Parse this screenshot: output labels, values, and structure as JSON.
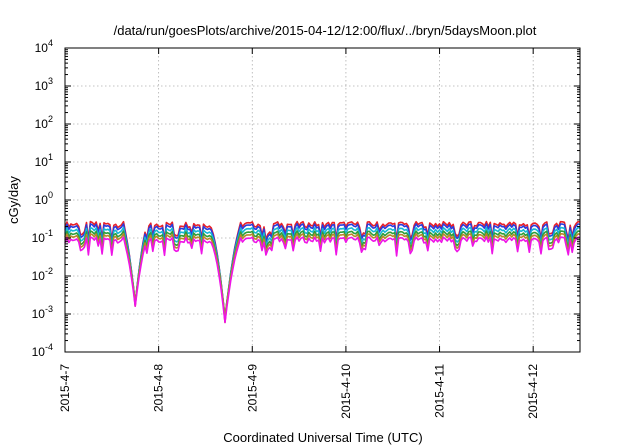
{
  "chart_data": {
    "type": "line",
    "title": "/data/run/goesPlots/archive/2015-04-12/12:00/flux/../bryn/5daysMoon.plot",
    "xlabel": "Coordinated Universal Time (UTC)",
    "ylabel": "cGy/day",
    "yscale": "log",
    "ylim": [
      0.0001,
      10000
    ],
    "xlim": [
      "2015-04-07 00:00",
      "2015-04-12 12:00"
    ],
    "x_ticks": [
      "2015-4-7",
      "2015-4-8",
      "2015-4-9",
      "2015-4-10",
      "2015-4-11",
      "2015-4-12"
    ],
    "y_ticks": [
      {
        "base": "10",
        "exp": "-4"
      },
      {
        "base": "10",
        "exp": "-3"
      },
      {
        "base": "10",
        "exp": "-2"
      },
      {
        "base": "10",
        "exp": "-1"
      },
      {
        "base": "10",
        "exp": "0"
      },
      {
        "base": "10",
        "exp": "1"
      },
      {
        "base": "10",
        "exp": "2"
      },
      {
        "base": "10",
        "exp": "3"
      },
      {
        "base": "10",
        "exp": "4"
      }
    ],
    "grid": true,
    "series": [
      {
        "color": "#e8212a",
        "scale": 2.3,
        "points": [
          [
            "2015-04-07 00:00",
            0.22
          ],
          [
            "2015-04-07 12:00",
            0.21
          ],
          [
            "2015-04-07 18:00",
            0.0016
          ],
          [
            "2015-04-08 00:00",
            0.22
          ],
          [
            "2015-04-08 12:00",
            0.22
          ],
          [
            "2015-04-08 17:00",
            0.0006
          ],
          [
            "2015-04-09 00:00",
            0.22
          ],
          [
            "2015-04-10 00:00",
            0.22
          ],
          [
            "2015-04-11 00:00",
            0.22
          ],
          [
            "2015-04-12 00:00",
            0.22
          ],
          [
            "2015-04-12 12:00",
            0.22
          ]
        ]
      },
      {
        "color": "#2a3bdc",
        "scale": 2.0,
        "points": [
          [
            "2015-04-07 00:00",
            0.2
          ],
          [
            "2015-04-07 12:00",
            0.19
          ],
          [
            "2015-04-07 18:00",
            0.0018
          ],
          [
            "2015-04-08 00:00",
            0.2
          ],
          [
            "2015-04-08 12:00",
            0.2
          ],
          [
            "2015-04-08 17:00",
            0.0007
          ],
          [
            "2015-04-09 00:00",
            0.2
          ],
          [
            "2015-04-10 00:00",
            0.2
          ],
          [
            "2015-04-11 00:00",
            0.2
          ],
          [
            "2015-04-12 00:00",
            0.2
          ],
          [
            "2015-04-12 12:00",
            0.2
          ]
        ]
      },
      {
        "color": "#17b8d4",
        "scale": 1.6,
        "points": [
          [
            "2015-04-07 00:00",
            0.16
          ],
          [
            "2015-04-07 12:00",
            0.15
          ],
          [
            "2015-04-07 18:00",
            0.002
          ],
          [
            "2015-04-08 00:00",
            0.16
          ],
          [
            "2015-04-08 12:00",
            0.16
          ],
          [
            "2015-04-08 17:00",
            0.0008
          ],
          [
            "2015-04-09 00:00",
            0.16
          ],
          [
            "2015-04-10 00:00",
            0.16
          ],
          [
            "2015-04-11 00:00",
            0.16
          ],
          [
            "2015-04-12 00:00",
            0.16
          ],
          [
            "2015-04-12 12:00",
            0.16
          ]
        ]
      },
      {
        "color": "#2e9e3a",
        "scale": 1.3,
        "points": [
          [
            "2015-04-07 00:00",
            0.13
          ],
          [
            "2015-04-07 12:00",
            0.12
          ],
          [
            "2015-04-07 18:00",
            0.002
          ],
          [
            "2015-04-08 00:00",
            0.13
          ],
          [
            "2015-04-08 12:00",
            0.13
          ],
          [
            "2015-04-08 17:00",
            0.0008
          ],
          [
            "2015-04-09 00:00",
            0.13
          ],
          [
            "2015-04-10 00:00",
            0.13
          ],
          [
            "2015-04-11 00:00",
            0.13
          ],
          [
            "2015-04-12 00:00",
            0.13
          ],
          [
            "2015-04-12 12:00",
            0.13
          ]
        ]
      },
      {
        "color": "#b8862a",
        "scale": 1.1,
        "points": [
          [
            "2015-04-07 00:00",
            0.11
          ],
          [
            "2015-04-07 12:00",
            0.1
          ],
          [
            "2015-04-07 18:00",
            0.002
          ],
          [
            "2015-04-08 00:00",
            0.11
          ],
          [
            "2015-04-08 12:00",
            0.11
          ],
          [
            "2015-04-08 17:00",
            0.0008
          ],
          [
            "2015-04-09 00:00",
            0.11
          ],
          [
            "2015-04-10 00:00",
            0.11
          ],
          [
            "2015-04-11 00:00",
            0.11
          ],
          [
            "2015-04-12 00:00",
            0.11
          ],
          [
            "2015-04-12 12:00",
            0.11
          ]
        ]
      },
      {
        "color": "#ee14e6",
        "scale": 0.9,
        "points": [
          [
            "2015-04-07 00:00",
            0.09
          ],
          [
            "2015-04-07 12:00",
            0.085
          ],
          [
            "2015-04-07 18:00",
            0.0016
          ],
          [
            "2015-04-08 00:00",
            0.09
          ],
          [
            "2015-04-08 12:00",
            0.09
          ],
          [
            "2015-04-08 17:00",
            0.0006
          ],
          [
            "2015-04-09 00:00",
            0.09
          ],
          [
            "2015-04-10 00:00",
            0.09
          ],
          [
            "2015-04-11 00:00",
            0.09
          ],
          [
            "2015-04-12 00:00",
            0.09
          ],
          [
            "2015-04-12 12:00",
            0.09
          ]
        ]
      }
    ]
  }
}
